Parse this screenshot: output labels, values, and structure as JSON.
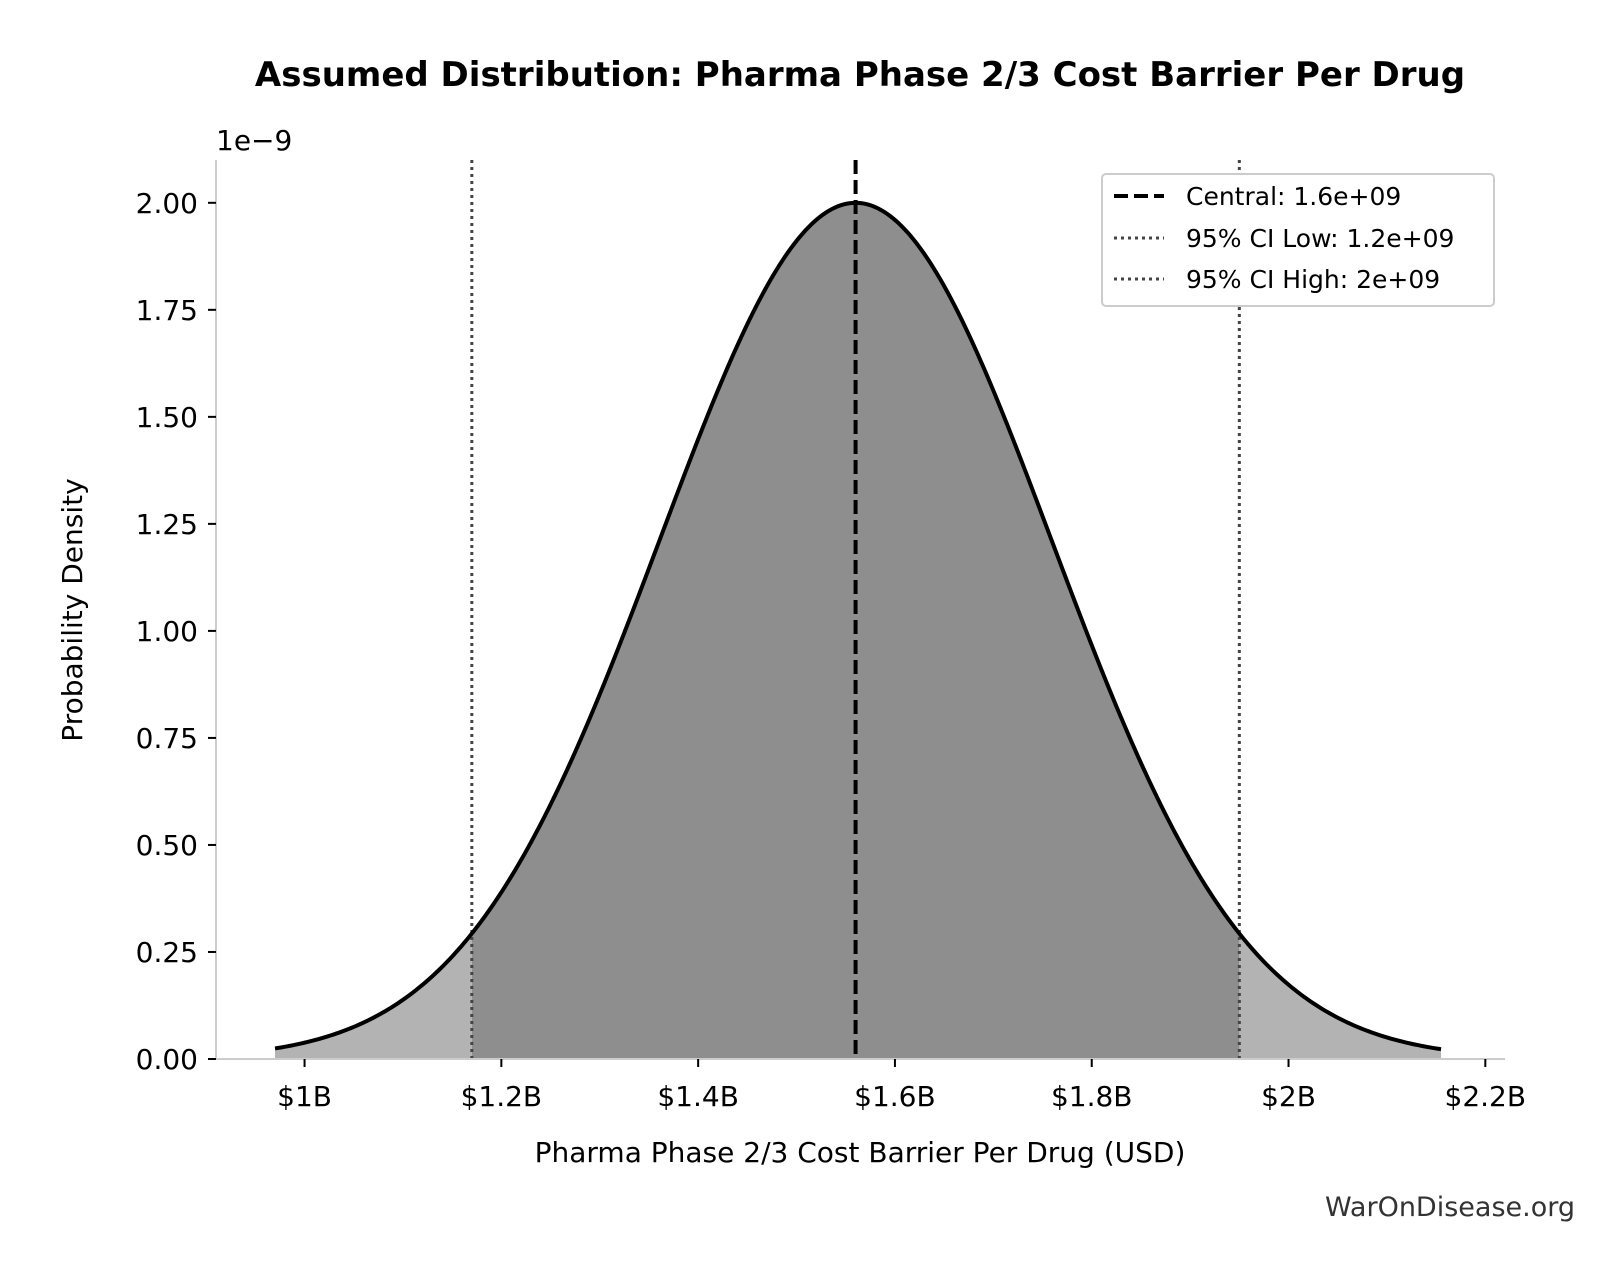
{
  "chart_data": {
    "type": "area",
    "title": "Assumed Distribution: Pharma Phase 2/3 Cost Barrier Per Drug",
    "xlabel": "Pharma Phase 2/3 Cost Barrier Per Drug (USD)",
    "ylabel": "Probability Density",
    "y_offset_label": "1e−9",
    "xlim": [
      0.91,
      2.22
    ],
    "ylim": [
      0,
      2.1
    ],
    "x_unit": "billion USD",
    "y_scale_factor": "1e-9",
    "x_ticks": [
      {
        "value": 1.0,
        "label": "$1B"
      },
      {
        "value": 1.2,
        "label": "$1.2B"
      },
      {
        "value": 1.4,
        "label": "$1.4B"
      },
      {
        "value": 1.6,
        "label": "$1.6B"
      },
      {
        "value": 1.8,
        "label": "$1.8B"
      },
      {
        "value": 2.0,
        "label": "$2B"
      },
      {
        "value": 2.2,
        "label": "$2.2B"
      }
    ],
    "y_ticks": [
      {
        "value": 0.0,
        "label": "0.00"
      },
      {
        "value": 0.25,
        "label": "0.25"
      },
      {
        "value": 0.5,
        "label": "0.50"
      },
      {
        "value": 0.75,
        "label": "0.75"
      },
      {
        "value": 1.0,
        "label": "1.00"
      },
      {
        "value": 1.25,
        "label": "1.25"
      },
      {
        "value": 1.5,
        "label": "1.50"
      },
      {
        "value": 1.75,
        "label": "1.75"
      },
      {
        "value": 2.0,
        "label": "2.00"
      }
    ],
    "distribution": {
      "kind": "normal",
      "mean": 1.56,
      "sd": 0.199,
      "x_range": [
        0.97,
        2.155
      ],
      "peak_density": 2.0
    },
    "reference_lines": [
      {
        "name": "Central: 1.6e+09",
        "x": 1.56,
        "style": "dashed"
      },
      {
        "name": "95% CI Low: 1.2e+09",
        "x": 1.17,
        "style": "dotted"
      },
      {
        "name": "95% CI High: 2e+09",
        "x": 1.95,
        "style": "dotted"
      }
    ],
    "legend_position": "top-right",
    "grid": false,
    "colors": {
      "inner_fill": "#8e8e8e",
      "tail_fill": "#b3b3b3",
      "curve": "#000000",
      "ci_line": "#444444",
      "axis": "#cccccc"
    }
  },
  "watermark": "WarOnDisease.org"
}
